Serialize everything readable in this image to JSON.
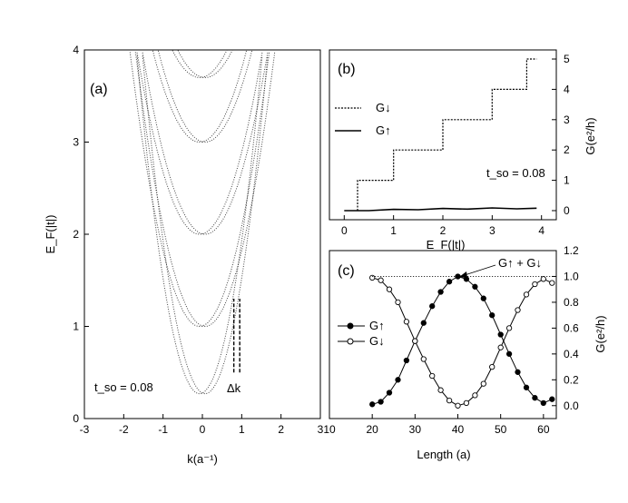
{
  "chart_data": [
    {
      "id": "a",
      "type": "scatter",
      "panel_label": "(a)",
      "xlabel": "k(a⁻¹)",
      "ylabel": "E_F(|t|)",
      "xlim": [
        -3,
        3
      ],
      "ylim": [
        0,
        4
      ],
      "xticks": [
        -3,
        -2,
        -1,
        0,
        1,
        2,
        3
      ],
      "yticks": [
        0,
        1,
        2,
        3,
        4
      ],
      "annotation_tso": "t_so = 0.08",
      "annotation_dk": "Δk",
      "band_minima": [
        0.27,
        1.0,
        2.0,
        3.0,
        3.7
      ],
      "spin_split_k": 0.14,
      "dk_marker": {
        "k": [
          0.8,
          0.95
        ],
        "E": [
          0.5,
          1.3
        ]
      }
    },
    {
      "id": "b",
      "type": "line",
      "panel_label": "(b)",
      "xlabel": "E_F(|t|)",
      "ylabel": "G(e²/h)",
      "xlim": [
        -0.3,
        4.3
      ],
      "ylim": [
        -0.3,
        5.3
      ],
      "xticks": [
        0,
        1,
        2,
        3,
        4
      ],
      "yticks": [
        0,
        1,
        2,
        3,
        4,
        5
      ],
      "annotation_tso": "t_so = 0.08",
      "series": [
        {
          "name": "G↓",
          "style": "dashed",
          "x": [
            0.27,
            0.27,
            1.0,
            1.0,
            2.0,
            2.0,
            3.0,
            3.0,
            3.7,
            3.7,
            3.9
          ],
          "y": [
            0,
            1,
            1,
            2,
            2,
            3,
            3,
            4,
            4,
            5,
            5
          ]
        },
        {
          "name": "G↑",
          "style": "solid",
          "x": [
            0.0,
            0.5,
            1.0,
            1.5,
            2.0,
            2.5,
            3.0,
            3.5,
            3.9
          ],
          "y": [
            0.0,
            0.0,
            0.04,
            0.03,
            0.07,
            0.05,
            0.09,
            0.06,
            0.08
          ]
        }
      ]
    },
    {
      "id": "c",
      "type": "line",
      "panel_label": "(c)",
      "xlabel": "Length (a)",
      "ylabel": "G(e²/h)",
      "xlim": [
        10,
        63
      ],
      "ylim": [
        -0.1,
        1.2
      ],
      "xticks": [
        10,
        20,
        30,
        40,
        50,
        60
      ],
      "yticks": [
        0.0,
        0.2,
        0.4,
        0.6,
        0.8,
        1.0,
        1.2
      ],
      "annotation_sum": "G↑ + G↓",
      "series": [
        {
          "name": "G↑",
          "marker": "filled",
          "x": [
            20,
            22,
            24,
            26,
            28,
            30,
            32,
            34,
            36,
            38,
            40,
            42,
            44,
            46,
            48,
            50,
            52,
            54,
            56,
            58,
            60,
            62
          ],
          "y": [
            0.01,
            0.03,
            0.1,
            0.2,
            0.35,
            0.5,
            0.64,
            0.77,
            0.88,
            0.96,
            1.0,
            0.98,
            0.92,
            0.83,
            0.7,
            0.55,
            0.4,
            0.26,
            0.14,
            0.06,
            0.02,
            0.05
          ]
        },
        {
          "name": "G↓",
          "marker": "open",
          "x": [
            20,
            22,
            24,
            26,
            28,
            30,
            32,
            34,
            36,
            38,
            40,
            42,
            44,
            46,
            48,
            50,
            52,
            54,
            56,
            58,
            60,
            62
          ],
          "y": [
            0.99,
            0.97,
            0.9,
            0.8,
            0.65,
            0.5,
            0.36,
            0.23,
            0.12,
            0.04,
            0.0,
            0.02,
            0.08,
            0.17,
            0.3,
            0.45,
            0.6,
            0.74,
            0.86,
            0.94,
            0.98,
            0.95
          ]
        },
        {
          "name": "G↑ + G↓",
          "style": "dotted",
          "x": [
            20,
            62
          ],
          "y": [
            1.0,
            1.0
          ]
        }
      ]
    }
  ]
}
